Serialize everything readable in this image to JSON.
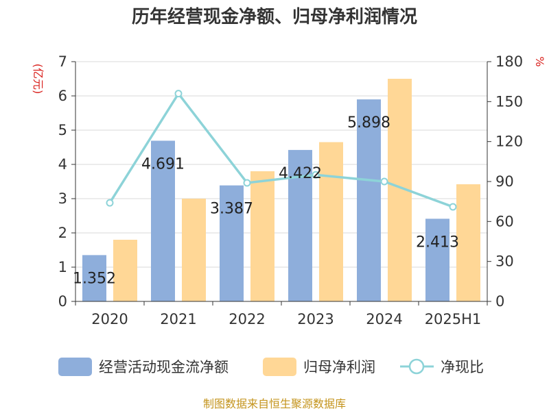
{
  "chart_data": {
    "type": "bar",
    "title": "历年经营现金净额、归母净利润情况",
    "categories": [
      "2020",
      "2021",
      "2022",
      "2023",
      "2024",
      "2025H1"
    ],
    "series": [
      {
        "name": "经营活动现金流净额",
        "type": "bar",
        "axis": "left",
        "color": "#8eaedb",
        "values": [
          1.352,
          4.691,
          3.387,
          4.422,
          5.898,
          2.413
        ],
        "labels": [
          "1.352",
          "4.691",
          "3.387",
          "4.422",
          "5.898",
          "2.413"
        ]
      },
      {
        "name": "归母净利润",
        "type": "bar",
        "axis": "left",
        "color": "#ffd796",
        "values": [
          1.8,
          3.0,
          3.8,
          4.65,
          6.5,
          3.42
        ]
      },
      {
        "name": "净现比",
        "type": "line",
        "axis": "right",
        "color": "#8dd3d8",
        "values": [
          74,
          156,
          89,
          95,
          90,
          71
        ]
      }
    ],
    "y_left": {
      "unit_label": "(亿元)",
      "range": [
        0,
        7
      ],
      "ticks": [
        "0",
        "1",
        "2",
        "3",
        "4",
        "5",
        "6",
        "7"
      ]
    },
    "y_right": {
      "unit_label": "%",
      "range": [
        0,
        180
      ],
      "ticks": [
        "0",
        "30",
        "60",
        "90",
        "120",
        "150",
        "180"
      ]
    },
    "grid": true,
    "legend": "bottom"
  },
  "source_note": "制图数据来自恒生聚源数据库"
}
